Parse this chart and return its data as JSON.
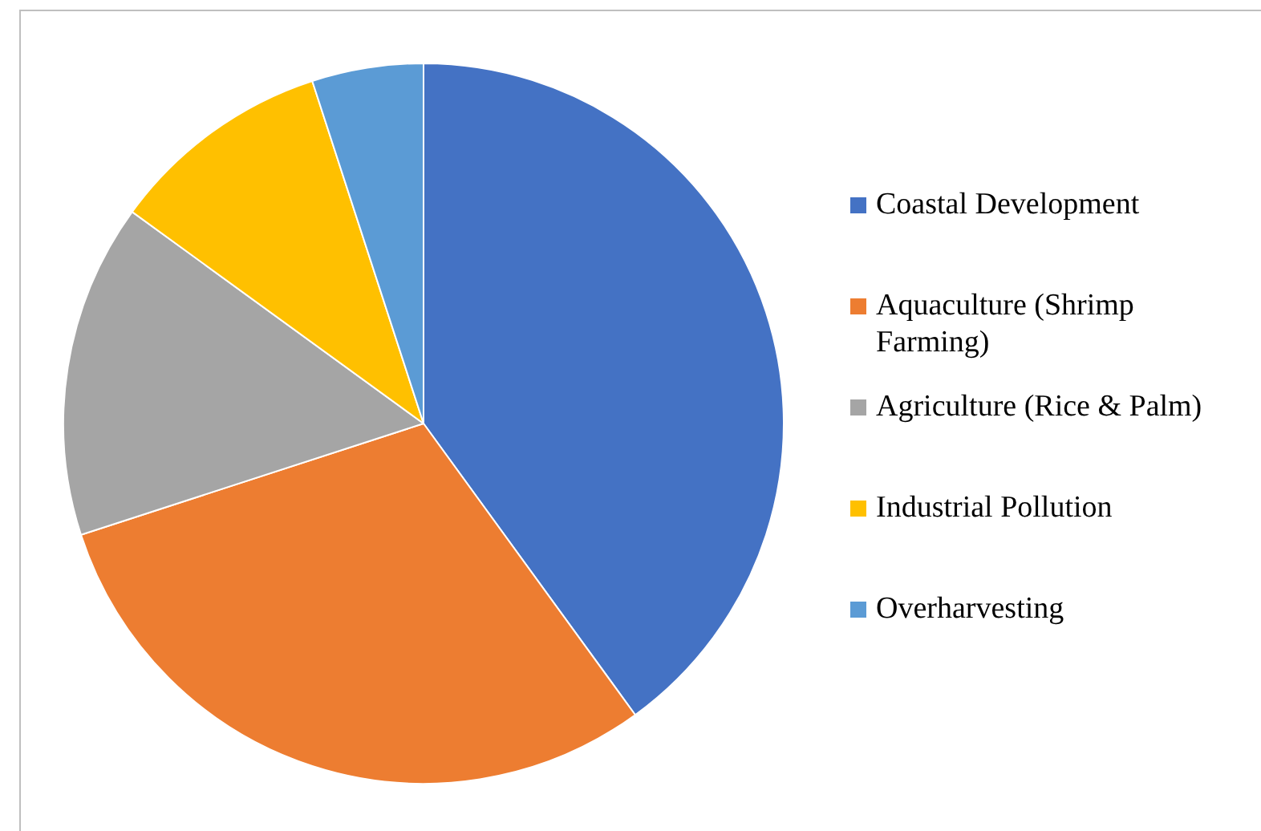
{
  "chart_data": {
    "type": "pie",
    "categories": [
      "Coastal Development",
      "Aquaculture (Shrimp Farming)",
      "Agriculture (Rice & Palm)",
      "Industrial Pollution",
      "Overharvesting"
    ],
    "values": [
      40,
      30,
      15,
      10,
      5
    ],
    "colors": [
      "#4472c4",
      "#ed7d31",
      "#a5a5a5",
      "#ffc000",
      "#5b9bd5"
    ],
    "legend": "right"
  }
}
